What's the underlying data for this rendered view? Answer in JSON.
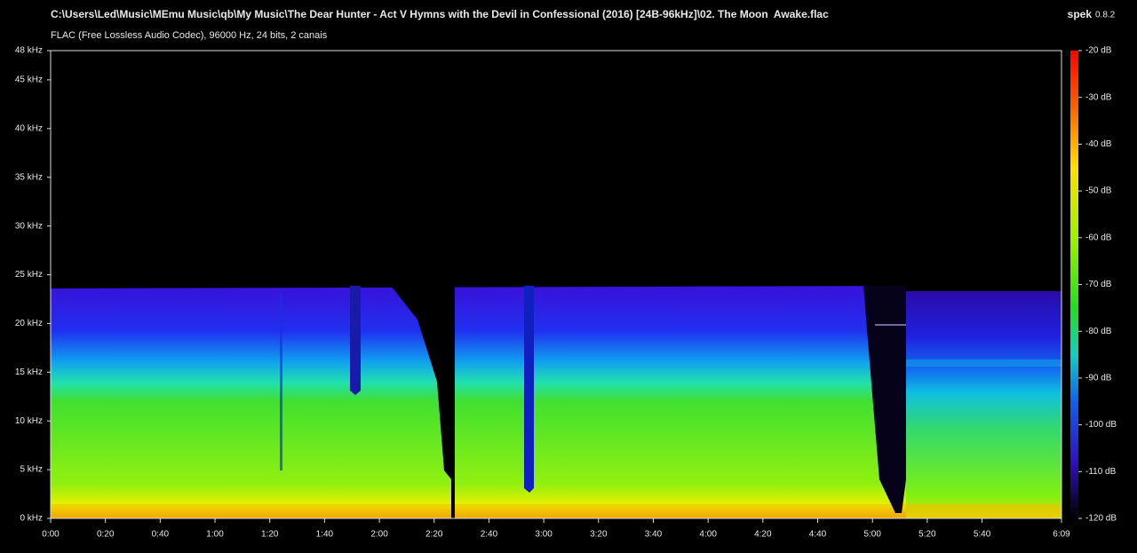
{
  "chart_data": {
    "type": "spectrogram",
    "title": "C:\\Users\\Led\\Music\\MEmu Music\\qb\\My Music\\The Dear Hunter - Act V Hymns with the Devil in Confessional (2016) [24B-96kHz]\\02. The Moon  Awake.flac",
    "subtitle": "FLAC (Free Lossless Audio Codec), 96000 Hz, 24 bits, 2 canais",
    "app_name": "spek",
    "app_version": "0.8.2",
    "xlim": [
      0,
      369
    ],
    "xticks": [
      {
        "value": 0,
        "label": "0:00"
      },
      {
        "value": 20,
        "label": "0:20"
      },
      {
        "value": 40,
        "label": "0:40"
      },
      {
        "value": 60,
        "label": "1:00"
      },
      {
        "value": 80,
        "label": "1:20"
      },
      {
        "value": 100,
        "label": "1:40"
      },
      {
        "value": 120,
        "label": "2:00"
      },
      {
        "value": 140,
        "label": "2:20"
      },
      {
        "value": 160,
        "label": "2:40"
      },
      {
        "value": 180,
        "label": "3:00"
      },
      {
        "value": 200,
        "label": "3:20"
      },
      {
        "value": 220,
        "label": "3:40"
      },
      {
        "value": 240,
        "label": "4:00"
      },
      {
        "value": 260,
        "label": "4:20"
      },
      {
        "value": 280,
        "label": "4:40"
      },
      {
        "value": 300,
        "label": "5:00"
      },
      {
        "value": 320,
        "label": "5:20"
      },
      {
        "value": 340,
        "label": "5:40"
      },
      {
        "value": 369,
        "label": "6:09"
      }
    ],
    "ylim": [
      0,
      48
    ],
    "yticks": [
      {
        "value": 0,
        "label": "0 kHz"
      },
      {
        "value": 5,
        "label": "5 kHz"
      },
      {
        "value": 10,
        "label": "10 kHz"
      },
      {
        "value": 15,
        "label": "15 kHz"
      },
      {
        "value": 20,
        "label": "20 kHz"
      },
      {
        "value": 25,
        "label": "25 kHz"
      },
      {
        "value": 30,
        "label": "30 kHz"
      },
      {
        "value": 35,
        "label": "35 kHz"
      },
      {
        "value": 40,
        "label": "40 kHz"
      },
      {
        "value": 45,
        "label": "45 kHz"
      },
      {
        "value": 48,
        "label": "48 kHz"
      }
    ],
    "colorbar_lim": [
      -120,
      -20
    ],
    "colorbar_ticks": [
      {
        "value": -20,
        "label": "-20 dB"
      },
      {
        "value": -30,
        "label": "-30 dB"
      },
      {
        "value": -40,
        "label": "-40 dB"
      },
      {
        "value": -50,
        "label": "-50 dB"
      },
      {
        "value": -60,
        "label": "-60 dB"
      },
      {
        "value": -70,
        "label": "-70 dB"
      },
      {
        "value": -80,
        "label": "-80 dB"
      },
      {
        "value": -90,
        "label": "-90 dB"
      },
      {
        "value": -100,
        "label": "-100 dB"
      },
      {
        "value": -110,
        "label": "-110 dB"
      },
      {
        "value": -120,
        "label": "-120 dB"
      }
    ]
  }
}
